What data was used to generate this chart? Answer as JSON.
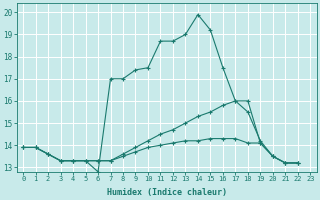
{
  "xlabel": "Humidex (Indice chaleur)",
  "background_color": "#c8eaea",
  "grid_color": "#ffffff",
  "line_color": "#1a7a6e",
  "xlim": [
    -0.5,
    23.5
  ],
  "ylim": [
    12.8,
    20.4
  ],
  "xticks": [
    0,
    1,
    2,
    3,
    4,
    5,
    6,
    7,
    8,
    9,
    10,
    11,
    12,
    13,
    14,
    15,
    16,
    17,
    18,
    19,
    20,
    21,
    22,
    23
  ],
  "yticks": [
    13,
    14,
    15,
    16,
    17,
    18,
    19,
    20
  ],
  "series": [
    [
      13.9,
      13.9,
      13.6,
      13.3,
      13.3,
      13.3,
      12.8,
      17.0,
      17.0,
      17.4,
      17.5,
      18.7,
      18.7,
      19.0,
      19.9,
      19.2,
      17.5,
      16.0,
      15.5,
      14.2,
      13.5,
      13.2,
      13.2
    ],
    [
      13.9,
      13.9,
      13.6,
      13.3,
      13.3,
      13.3,
      13.3,
      13.3,
      13.6,
      13.9,
      14.2,
      14.5,
      14.7,
      15.0,
      15.3,
      15.5,
      15.8,
      16.0,
      16.0,
      14.1,
      13.5,
      13.2,
      13.2
    ],
    [
      13.9,
      13.9,
      13.6,
      13.3,
      13.3,
      13.3,
      13.3,
      13.3,
      13.5,
      13.7,
      13.9,
      14.0,
      14.1,
      14.2,
      14.2,
      14.3,
      14.3,
      14.3,
      14.1,
      14.1,
      13.5,
      13.2,
      13.2
    ]
  ],
  "marker": "+",
  "marker_size": 3,
  "linewidth": 0.8,
  "font_size_x": 5.0,
  "font_size_y": 5.5,
  "font_size_label": 6.0,
  "font_color": "#1a7a6e"
}
